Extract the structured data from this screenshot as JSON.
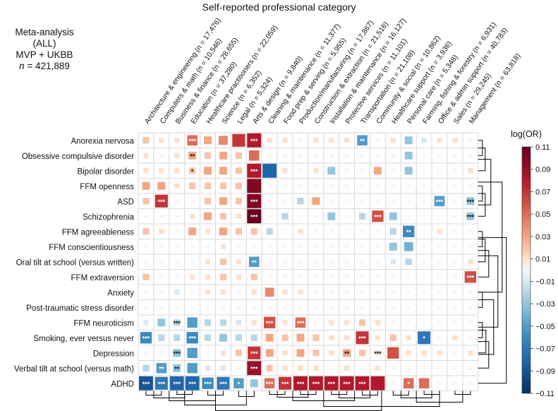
{
  "chart_data": {
    "type": "heatmap",
    "title": "Self-reported professional category",
    "meta": {
      "line1": "Meta-analysis (ALL)",
      "line2": "MVP + UKBB",
      "n_label": "n",
      "n_value": "= 421,889"
    },
    "columns": [
      "Architecture & engineering (n = 17,476)",
      "Computers & math (n = 10,546)",
      "Business & finance (n = 28,655)",
      "Education (n = 37,280)",
      "Healthcare practitioners (n = 22,059)",
      "Science (n = 6,352)",
      "Legal (n = 5,324)",
      "Arts & design (n = 9,840)",
      "Cleaning & maintenance (n = 11,377)",
      "Food prep & serving (n = 5,955)",
      "Production/manufacturing (n = 17,867)",
      "Construction & extraction (n = 21,516)",
      "Installation & maintenance (n = 16,127)",
      "Protective services (n = 11,101)",
      "Transportation (n = 21,108)",
      "Community & social (n = 10,862)",
      "Healthcare support (n = 3,936)",
      "Personal care (n = 5,348)",
      "Farming, fishing & forestry (n = 6,931)",
      "Office & admin support (n = 40,783)",
      "Sales (n = 29,245)",
      "Management (n = 63,818)"
    ],
    "rows": [
      "Anorexia nervosa",
      "Obsessive compulsive disorder",
      "Bipolar disorder",
      "FFM openness",
      "ASD",
      "Schizophrenia",
      "FFM agreeableness",
      "FFM conscientiousness",
      "Oral tilt at school (versus written)",
      "FFM extraversion",
      "Anxiety",
      "Post-traumatic stress disorder",
      "FFM neuroticism",
      "Smoking, ever versus never",
      "Depression",
      "Verbal tilt at school (versus math)",
      "ADHD"
    ],
    "values": [
      [
        0.02,
        0.01,
        0.01,
        0.05,
        0.03,
        0.04,
        0.07,
        0.08,
        0.01,
        0.01,
        0.0,
        0.01,
        0.01,
        0.01,
        -0.05,
        0.0,
        0.01,
        -0.03,
        -0.01,
        0.01,
        0.01,
        0.0
      ],
      [
        0.01,
        0.0,
        0.01,
        0.03,
        0.02,
        0.03,
        0.02,
        0.05,
        0.0,
        0.0,
        0.0,
        0.0,
        0.0,
        0.0,
        0.0,
        0.0,
        0.0,
        -0.03,
        0.0,
        0.0,
        0.0,
        0.0
      ],
      [
        0.01,
        0.01,
        0.01,
        0.02,
        0.03,
        0.03,
        0.02,
        0.08,
        -0.08,
        0.01,
        0.0,
        0.01,
        -0.03,
        0.0,
        0.0,
        0.03,
        0.0,
        -0.03,
        0.0,
        0.0,
        0.0,
        0.01
      ],
      [
        0.03,
        0.03,
        0.01,
        0.02,
        0.02,
        0.02,
        0.02,
        0.1,
        0.0,
        0.0,
        0.0,
        0.0,
        0.0,
        0.0,
        0.0,
        0.0,
        0.0,
        0.0,
        0.0,
        0.0,
        0.0,
        0.0
      ],
      [
        0.02,
        0.07,
        0.0,
        0.0,
        0.02,
        0.03,
        0.02,
        0.1,
        0.0,
        0.0,
        -0.02,
        0.03,
        0.0,
        0.0,
        0.0,
        0.0,
        0.0,
        0.0,
        0.0,
        -0.05,
        0.0,
        -0.03
      ],
      [
        0.0,
        0.0,
        0.0,
        0.01,
        0.03,
        0.02,
        0.01,
        0.11,
        0.0,
        -0.02,
        0.0,
        0.0,
        -0.03,
        0.0,
        -0.02,
        0.06,
        -0.03,
        0.0,
        0.0,
        0.0,
        0.0,
        -0.03
      ],
      [
        0.02,
        0.01,
        0.0,
        0.03,
        0.01,
        0.03,
        0.02,
        0.02,
        -0.02,
        0.0,
        0.01,
        0.0,
        0.0,
        0.0,
        0.0,
        0.0,
        -0.02,
        -0.06,
        0.0,
        0.01,
        0.0,
        0.0
      ],
      [
        0.0,
        0.0,
        0.0,
        0.0,
        0.0,
        0.01,
        0.0,
        0.0,
        0.0,
        0.0,
        0.0,
        0.0,
        0.0,
        0.0,
        0.0,
        0.0,
        -0.03,
        -0.04,
        0.0,
        0.0,
        0.0,
        0.0
      ],
      [
        0.0,
        0.0,
        0.0,
        0.0,
        0.01,
        0.02,
        0.01,
        -0.05,
        0.0,
        0.0,
        0.0,
        0.0,
        0.0,
        0.0,
        0.0,
        0.0,
        -0.01,
        -0.02,
        0.0,
        0.0,
        0.0,
        0.01
      ],
      [
        0.02,
        0.0,
        0.0,
        0.01,
        0.01,
        0.02,
        0.01,
        0.02,
        0.0,
        0.0,
        0.0,
        0.0,
        0.0,
        0.0,
        0.0,
        0.0,
        0.0,
        0.0,
        0.0,
        0.0,
        0.0,
        0.06
      ],
      [
        0.0,
        0.0,
        -0.01,
        0.0,
        0.01,
        0.01,
        0.0,
        0.01,
        0.04,
        0.01,
        0.01,
        0.0,
        0.0,
        0.0,
        0.0,
        0.0,
        0.0,
        0.0,
        0.0,
        0.0,
        0.0,
        0.0
      ],
      [
        0.0,
        0.0,
        0.0,
        0.0,
        0.0,
        0.0,
        0.0,
        0.0,
        0.0,
        0.0,
        0.0,
        0.0,
        0.0,
        0.0,
        0.0,
        0.0,
        0.0,
        0.0,
        0.0,
        0.0,
        0.0,
        0.0
      ],
      [
        -0.01,
        -0.03,
        -0.02,
        -0.05,
        -0.02,
        -0.02,
        -0.01,
        0.01,
        0.06,
        0.01,
        0.05,
        0.0,
        0.01,
        0.01,
        0.02,
        0.01,
        0.0,
        0.0,
        0.0,
        0.0,
        0.0,
        0.0
      ],
      [
        -0.06,
        -0.02,
        -0.02,
        -0.06,
        -0.02,
        -0.03,
        -0.02,
        -0.02,
        0.03,
        0.02,
        0.03,
        0.02,
        0.01,
        0.01,
        0.07,
        0.01,
        0.02,
        0.01,
        -0.07,
        0.0,
        0.01,
        0.0
      ],
      [
        0.0,
        0.0,
        -0.03,
        -0.05,
        0.0,
        0.01,
        0.02,
        0.07,
        0.03,
        0.01,
        0.03,
        0.02,
        0.01,
        0.03,
        0.02,
        0.01,
        0.06,
        0.01,
        0.01,
        0.01,
        0.0,
        0.01
      ],
      [
        -0.02,
        -0.05,
        -0.03,
        -0.05,
        -0.01,
        -0.01,
        0.0,
        0.09,
        0.02,
        0.01,
        0.01,
        0.01,
        0.0,
        0.01,
        0.0,
        0.01,
        0.0,
        0.0,
        0.0,
        0.0,
        0.0,
        0.0
      ],
      [
        -0.09,
        -0.07,
        -0.08,
        -0.08,
        -0.06,
        -0.07,
        -0.05,
        -0.03,
        0.05,
        0.07,
        0.08,
        0.08,
        0.08,
        0.08,
        0.08,
        0.08,
        0.0,
        0.05,
        0.05,
        0.0,
        0.0,
        0.0
      ]
    ],
    "annotations": [
      {
        "row": 0,
        "col": 3,
        "text": "***"
      },
      {
        "row": 0,
        "col": 7,
        "text": "***"
      },
      {
        "row": 0,
        "col": 14,
        "text": "**"
      },
      {
        "row": 1,
        "col": 3,
        "text": "**"
      },
      {
        "row": 2,
        "col": 3,
        "text": "*"
      },
      {
        "row": 2,
        "col": 7,
        "text": "***"
      },
      {
        "row": 4,
        "col": 1,
        "text": "***"
      },
      {
        "row": 4,
        "col": 7,
        "text": "***"
      },
      {
        "row": 4,
        "col": 19,
        "text": "***"
      },
      {
        "row": 4,
        "col": 21,
        "text": "***"
      },
      {
        "row": 5,
        "col": 7,
        "text": "***"
      },
      {
        "row": 5,
        "col": 15,
        "text": "***"
      },
      {
        "row": 5,
        "col": 21,
        "text": "***"
      },
      {
        "row": 6,
        "col": 17,
        "text": "**"
      },
      {
        "row": 8,
        "col": 7,
        "text": "**"
      },
      {
        "row": 9,
        "col": 21,
        "text": "***"
      },
      {
        "row": 12,
        "col": 2,
        "text": "***"
      },
      {
        "row": 12,
        "col": 8,
        "text": "***"
      },
      {
        "row": 12,
        "col": 10,
        "text": "***"
      },
      {
        "row": 13,
        "col": 0,
        "text": "***"
      },
      {
        "row": 13,
        "col": 3,
        "text": "***"
      },
      {
        "row": 13,
        "col": 14,
        "text": "***"
      },
      {
        "row": 13,
        "col": 18,
        "text": "*"
      },
      {
        "row": 14,
        "col": 2,
        "text": "***"
      },
      {
        "row": 14,
        "col": 7,
        "text": "***"
      },
      {
        "row": 14,
        "col": 13,
        "text": "**"
      },
      {
        "row": 14,
        "col": 15,
        "text": "***"
      },
      {
        "row": 15,
        "col": 1,
        "text": "**"
      },
      {
        "row": 15,
        "col": 2,
        "text": "**"
      },
      {
        "row": 15,
        "col": 7,
        "text": "***"
      },
      {
        "row": 16,
        "col": 0,
        "text": "***"
      },
      {
        "row": 16,
        "col": 1,
        "text": "***"
      },
      {
        "row": 16,
        "col": 2,
        "text": "***"
      },
      {
        "row": 16,
        "col": 3,
        "text": "***"
      },
      {
        "row": 16,
        "col": 4,
        "text": "***"
      },
      {
        "row": 16,
        "col": 5,
        "text": "***"
      },
      {
        "row": 16,
        "col": 6,
        "text": "*"
      },
      {
        "row": 16,
        "col": 8,
        "text": "***"
      },
      {
        "row": 16,
        "col": 9,
        "text": "***"
      },
      {
        "row": 16,
        "col": 10,
        "text": "***"
      },
      {
        "row": 16,
        "col": 11,
        "text": "***"
      },
      {
        "row": 16,
        "col": 12,
        "text": "***"
      },
      {
        "row": 16,
        "col": 13,
        "text": "***"
      },
      {
        "row": 16,
        "col": 14,
        "text": "***"
      },
      {
        "row": 16,
        "col": 17,
        "text": "*"
      }
    ],
    "colorbar": {
      "label": "log(OR)",
      "range": [
        -0.11,
        0.11
      ],
      "ticks": [
        "0.11",
        "0.09",
        "0.07",
        "0.05",
        "0.03",
        "0.01",
        "−0.01",
        "−0.03",
        "−0.05",
        "−0.07",
        "−0.09",
        "−0.11"
      ]
    },
    "colors": {
      "dark_red": "#67001f",
      "red": "#b2182b",
      "light_red": "#d6604d",
      "salmon": "#f4a582",
      "peach": "#fddbc7",
      "neutral": "#f7f7f7",
      "pale_blue": "#d1e5f0",
      "light_blue": "#92c5de",
      "blue": "#4393c3",
      "mid_blue": "#2166ac",
      "dark_blue": "#053061",
      "grid": "#d9d9d9",
      "line": "#000000"
    }
  }
}
